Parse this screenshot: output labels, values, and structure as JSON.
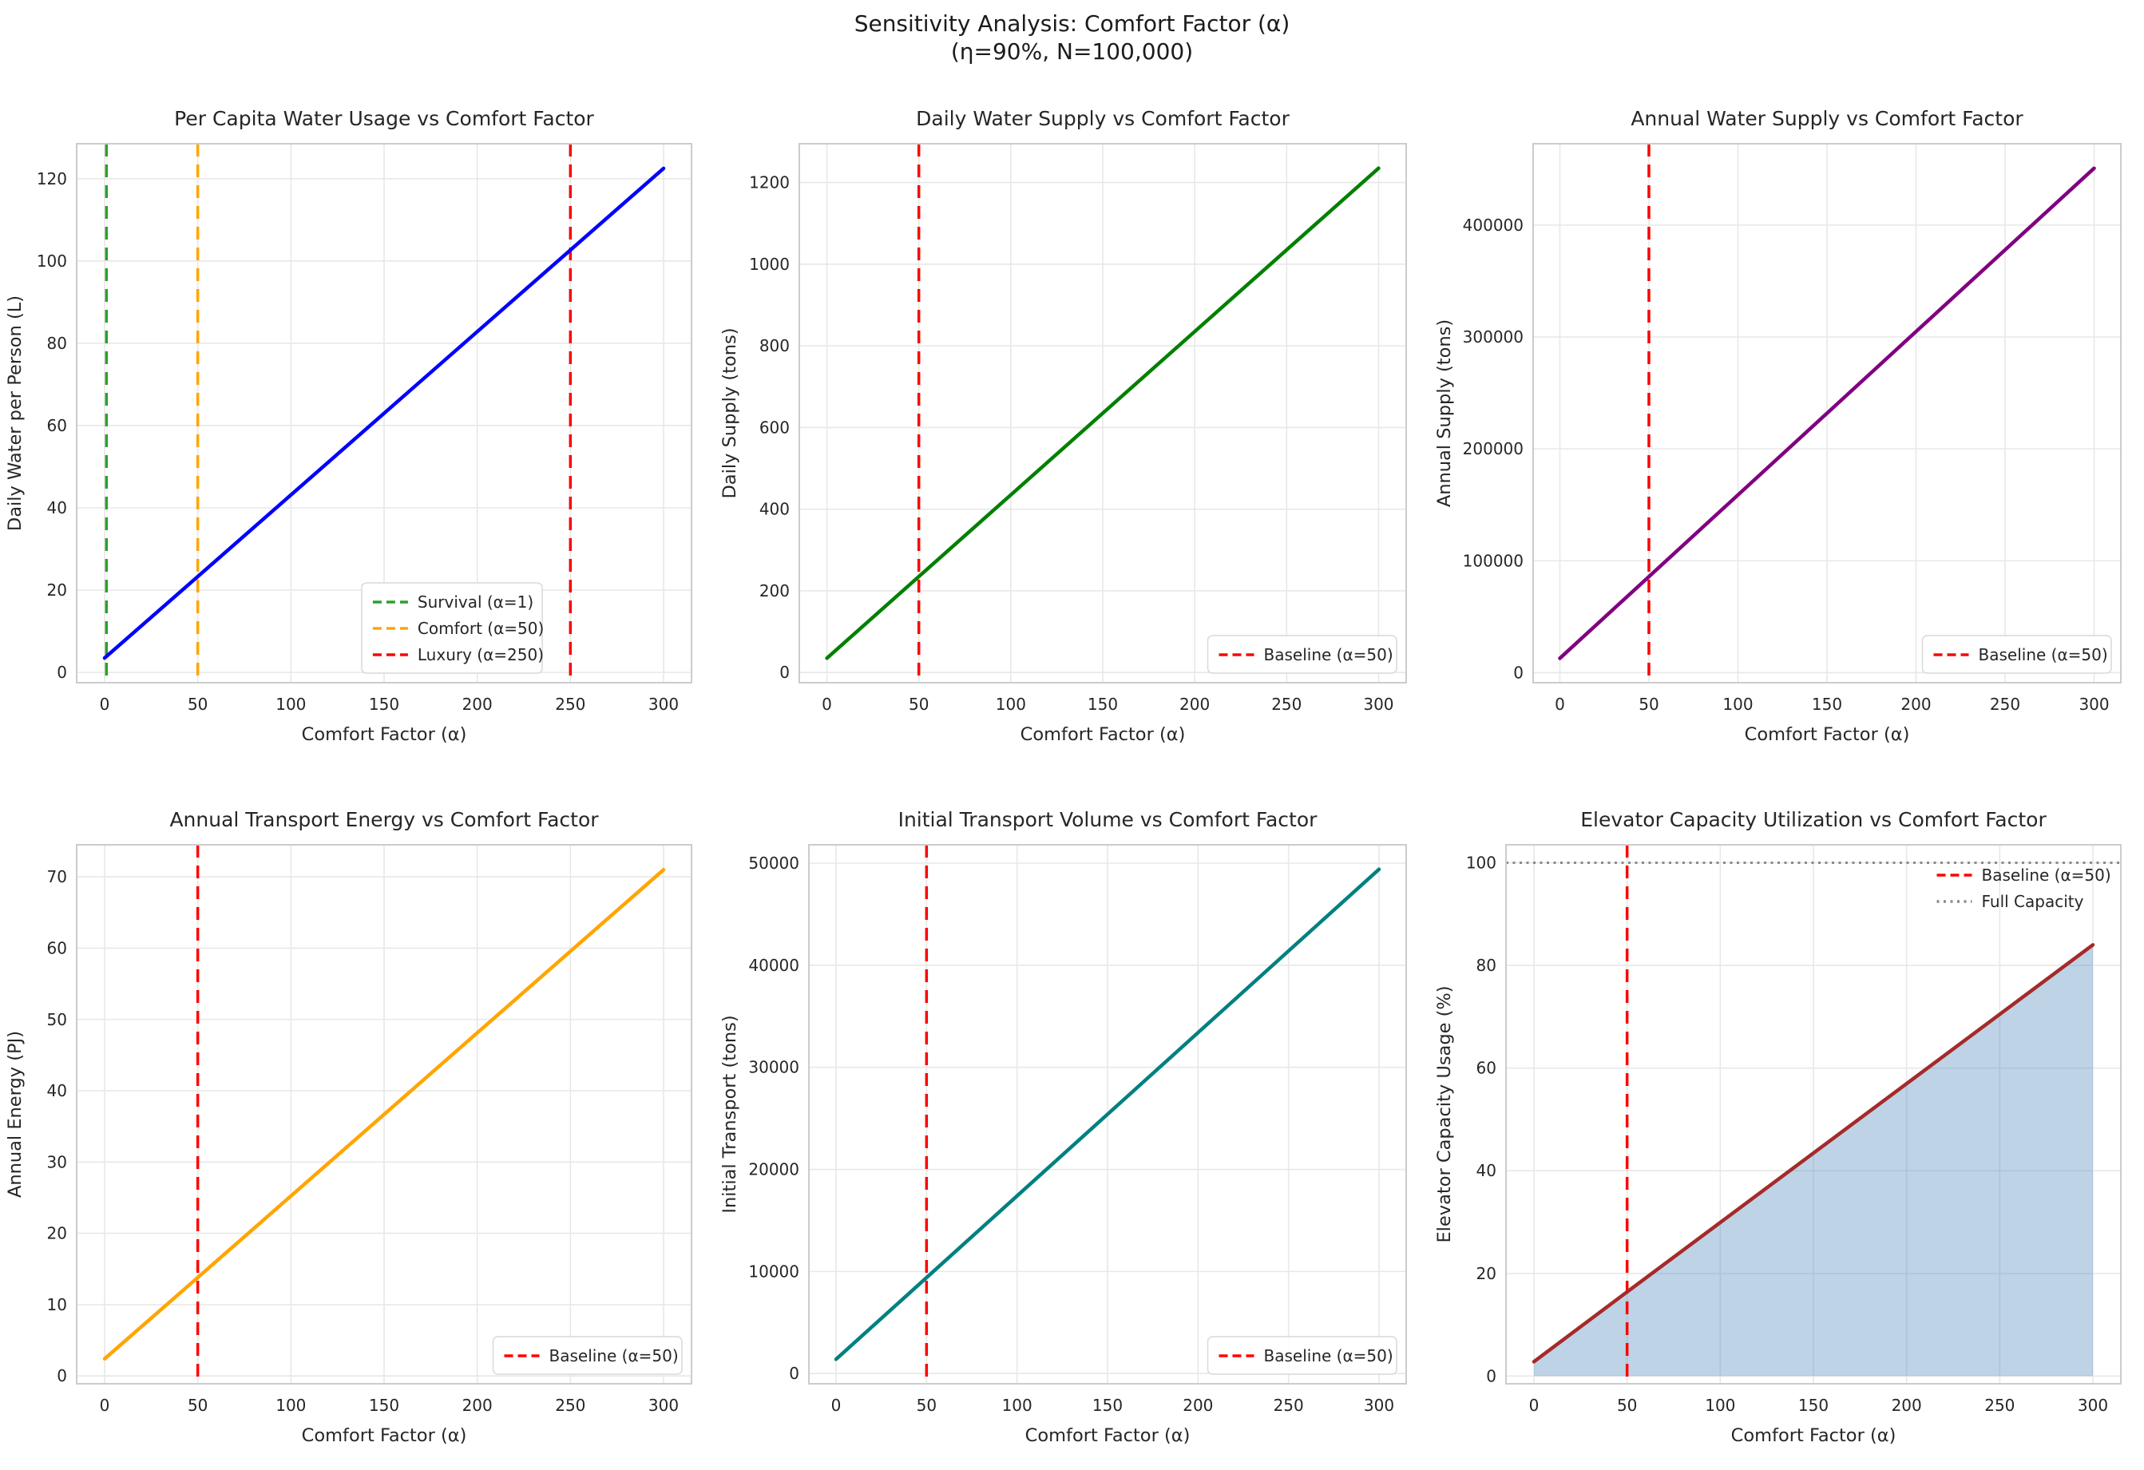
{
  "figure": {
    "title_line1": "Sensitivity Analysis: Comfort Factor (α)",
    "title_line2": "(η=90%, N=100,000)",
    "background": "#ffffff",
    "text_color": "#1f1f1f",
    "grid_color": "#e8e8e8",
    "spine_color": "#cccccc",
    "baseline_color": "#ff0000"
  },
  "chart_data": [
    {
      "type": "line",
      "title": "Per Capita Water Usage vs Comfort Factor",
      "xlabel": "Comfort Factor (α)",
      "ylabel": "Daily Water per Person (L)",
      "xlim": [
        -15,
        315
      ],
      "ylim": [
        -2.5,
        128.5
      ],
      "xticks": [
        0,
        50,
        100,
        150,
        200,
        250,
        300
      ],
      "xtick_labels": [
        "0",
        "50",
        "100",
        "150",
        "200",
        "250",
        "300"
      ],
      "yticks": [
        0,
        20,
        40,
        60,
        80,
        100,
        120
      ],
      "ytick_labels": [
        "0",
        "20",
        "40",
        "60",
        "80",
        "100",
        "120"
      ],
      "grid": true,
      "series": [
        {
          "name": "per-capita-water",
          "color": "#0000ff",
          "width": 4.5,
          "x": [
            0,
            50,
            300
          ],
          "y": [
            3.5,
            23.3,
            122.5
          ]
        }
      ],
      "vlines": [
        {
          "x": 1,
          "color": "#2ca02c",
          "style": "dashed",
          "label": "Survival (α=1)"
        },
        {
          "x": 50,
          "color": "#ffa500",
          "style": "dashed",
          "label": "Comfort (α=50)"
        },
        {
          "x": 250,
          "color": "#ff0000",
          "style": "dashed",
          "label": "Luxury (α=250)"
        }
      ],
      "hlines": [],
      "fill_under": false,
      "legend": {
        "position": "lower-center-right",
        "frame": true,
        "items": [
          {
            "label": "Survival (α=1)",
            "color": "#2ca02c",
            "dash": "dashed"
          },
          {
            "label": "Comfort (α=50)",
            "color": "#ffa500",
            "dash": "dashed"
          },
          {
            "label": "Luxury (α=250)",
            "color": "#ff0000",
            "dash": "dashed"
          }
        ]
      }
    },
    {
      "type": "line",
      "title": "Daily Water Supply vs Comfort Factor",
      "xlabel": "Comfort Factor (α)",
      "ylabel": "Daily Supply (tons)",
      "xlim": [
        -15,
        315
      ],
      "ylim": [
        -25,
        1295
      ],
      "xticks": [
        0,
        50,
        100,
        150,
        200,
        250,
        300
      ],
      "xtick_labels": [
        "0",
        "50",
        "100",
        "150",
        "200",
        "250",
        "300"
      ],
      "yticks": [
        0,
        200,
        400,
        600,
        800,
        1000,
        1200
      ],
      "ytick_labels": [
        "0",
        "200",
        "400",
        "600",
        "800",
        "1000",
        "1200"
      ],
      "grid": true,
      "series": [
        {
          "name": "daily-water-supply",
          "color": "#008000",
          "width": 4.5,
          "x": [
            0,
            50,
            300
          ],
          "y": [
            35,
            235,
            1235
          ]
        }
      ],
      "vlines": [
        {
          "x": 50,
          "color": "#ff0000",
          "style": "dashed",
          "label": "Baseline (α=50)"
        }
      ],
      "hlines": [],
      "fill_under": false,
      "legend": {
        "position": "lower-right",
        "frame": true,
        "items": [
          {
            "label": "Baseline (α=50)",
            "color": "#ff0000",
            "dash": "dashed"
          }
        ]
      }
    },
    {
      "type": "line",
      "title": "Annual Water Supply vs Comfort Factor",
      "xlabel": "Comfort Factor (α)",
      "ylabel": "Annual Supply (tons)",
      "xlim": [
        -15,
        315
      ],
      "ylim": [
        -9000,
        472700
      ],
      "xticks": [
        0,
        50,
        100,
        150,
        200,
        250,
        300
      ],
      "xtick_labels": [
        "0",
        "50",
        "100",
        "150",
        "200",
        "250",
        "300"
      ],
      "yticks": [
        0,
        100000,
        200000,
        300000,
        400000
      ],
      "ytick_labels": [
        "0",
        "100000",
        "200000",
        "300000",
        "400000"
      ],
      "grid": true,
      "series": [
        {
          "name": "annual-water-supply",
          "color": "#800080",
          "width": 4.5,
          "x": [
            0,
            50,
            300
          ],
          "y": [
            12800,
            85800,
            450800
          ]
        }
      ],
      "vlines": [
        {
          "x": 50,
          "color": "#ff0000",
          "style": "dashed",
          "label": "Baseline (α=50)"
        }
      ],
      "hlines": [],
      "fill_under": false,
      "legend": {
        "position": "lower-right",
        "frame": true,
        "items": [
          {
            "label": "Baseline (α=50)",
            "color": "#ff0000",
            "dash": "dashed"
          }
        ]
      }
    },
    {
      "type": "line",
      "title": "Annual Transport Energy vs Comfort Factor",
      "xlabel": "Comfort Factor (α)",
      "ylabel": "Annual Energy (PJ)",
      "xlim": [
        -15,
        315
      ],
      "ylim": [
        -1.1,
        74.5
      ],
      "xticks": [
        0,
        50,
        100,
        150,
        200,
        250,
        300
      ],
      "xtick_labels": [
        "0",
        "50",
        "100",
        "150",
        "200",
        "250",
        "300"
      ],
      "yticks": [
        0,
        10,
        20,
        30,
        40,
        50,
        60,
        70
      ],
      "ytick_labels": [
        "0",
        "10",
        "20",
        "30",
        "40",
        "50",
        "60",
        "70"
      ],
      "grid": true,
      "series": [
        {
          "name": "annual-transport-energy",
          "color": "#ffa500",
          "width": 4.5,
          "x": [
            0,
            50,
            300
          ],
          "y": [
            2.4,
            13.8,
            71.0
          ]
        }
      ],
      "vlines": [
        {
          "x": 50,
          "color": "#ff0000",
          "style": "dashed",
          "label": "Baseline (α=50)"
        }
      ],
      "hlines": [],
      "fill_under": false,
      "legend": {
        "position": "lower-right",
        "frame": true,
        "items": [
          {
            "label": "Baseline (α=50)",
            "color": "#ff0000",
            "dash": "dashed"
          }
        ]
      }
    },
    {
      "type": "line",
      "title": "Initial Transport Volume vs Comfort Factor",
      "xlabel": "Comfort Factor (α)",
      "ylabel": "Initial Transport (tons)",
      "xlim": [
        -15,
        315
      ],
      "ylim": [
        -1000,
        51800
      ],
      "xticks": [
        0,
        50,
        100,
        150,
        200,
        250,
        300
      ],
      "xtick_labels": [
        "0",
        "50",
        "100",
        "150",
        "200",
        "250",
        "300"
      ],
      "yticks": [
        0,
        10000,
        20000,
        30000,
        40000,
        50000
      ],
      "ytick_labels": [
        "0",
        "10000",
        "20000",
        "30000",
        "40000",
        "50000"
      ],
      "grid": true,
      "series": [
        {
          "name": "initial-transport-volume",
          "color": "#008080",
          "width": 4.5,
          "x": [
            0,
            50,
            300
          ],
          "y": [
            1400,
            9400,
            49400
          ]
        }
      ],
      "vlines": [
        {
          "x": 50,
          "color": "#ff0000",
          "style": "dashed",
          "label": "Baseline (α=50)"
        }
      ],
      "hlines": [],
      "fill_under": false,
      "legend": {
        "position": "lower-right",
        "frame": true,
        "items": [
          {
            "label": "Baseline (α=50)",
            "color": "#ff0000",
            "dash": "dashed"
          }
        ]
      }
    },
    {
      "type": "line",
      "title": "Elevator Capacity Utilization vs Comfort Factor",
      "xlabel": "Comfort Factor (α)",
      "ylabel": "Elevator Capacity Usage (%)",
      "xlim": [
        -15,
        315
      ],
      "ylim": [
        -1.5,
        103.5
      ],
      "xticks": [
        0,
        50,
        100,
        150,
        200,
        250,
        300
      ],
      "xtick_labels": [
        "0",
        "50",
        "100",
        "150",
        "200",
        "250",
        "300"
      ],
      "yticks": [
        0,
        20,
        40,
        60,
        80,
        100
      ],
      "ytick_labels": [
        "0",
        "20",
        "40",
        "60",
        "80",
        "100"
      ],
      "grid": true,
      "series": [
        {
          "name": "elevator-capacity-usage",
          "color": "#a52a2a",
          "width": 4.5,
          "x": [
            0,
            50,
            300
          ],
          "y": [
            2.8,
            16.4,
            84.0
          ]
        }
      ],
      "vlines": [
        {
          "x": 50,
          "color": "#ff0000",
          "style": "dashed",
          "label": "Baseline (α=50)"
        }
      ],
      "hlines": [
        {
          "y": 100,
          "color": "#8a8a8a",
          "style": "dotted",
          "label": "Full Capacity"
        }
      ],
      "fill_under": true,
      "fill_to": 0,
      "fill_color": "rgba(70,130,180,0.35)",
      "legend": {
        "position": "upper-right",
        "frame": false,
        "items": [
          {
            "label": "Baseline (α=50)",
            "color": "#ff0000",
            "dash": "dashed"
          },
          {
            "label": "Full Capacity",
            "color": "#8a8a8a",
            "dash": "dotted"
          }
        ]
      }
    }
  ]
}
